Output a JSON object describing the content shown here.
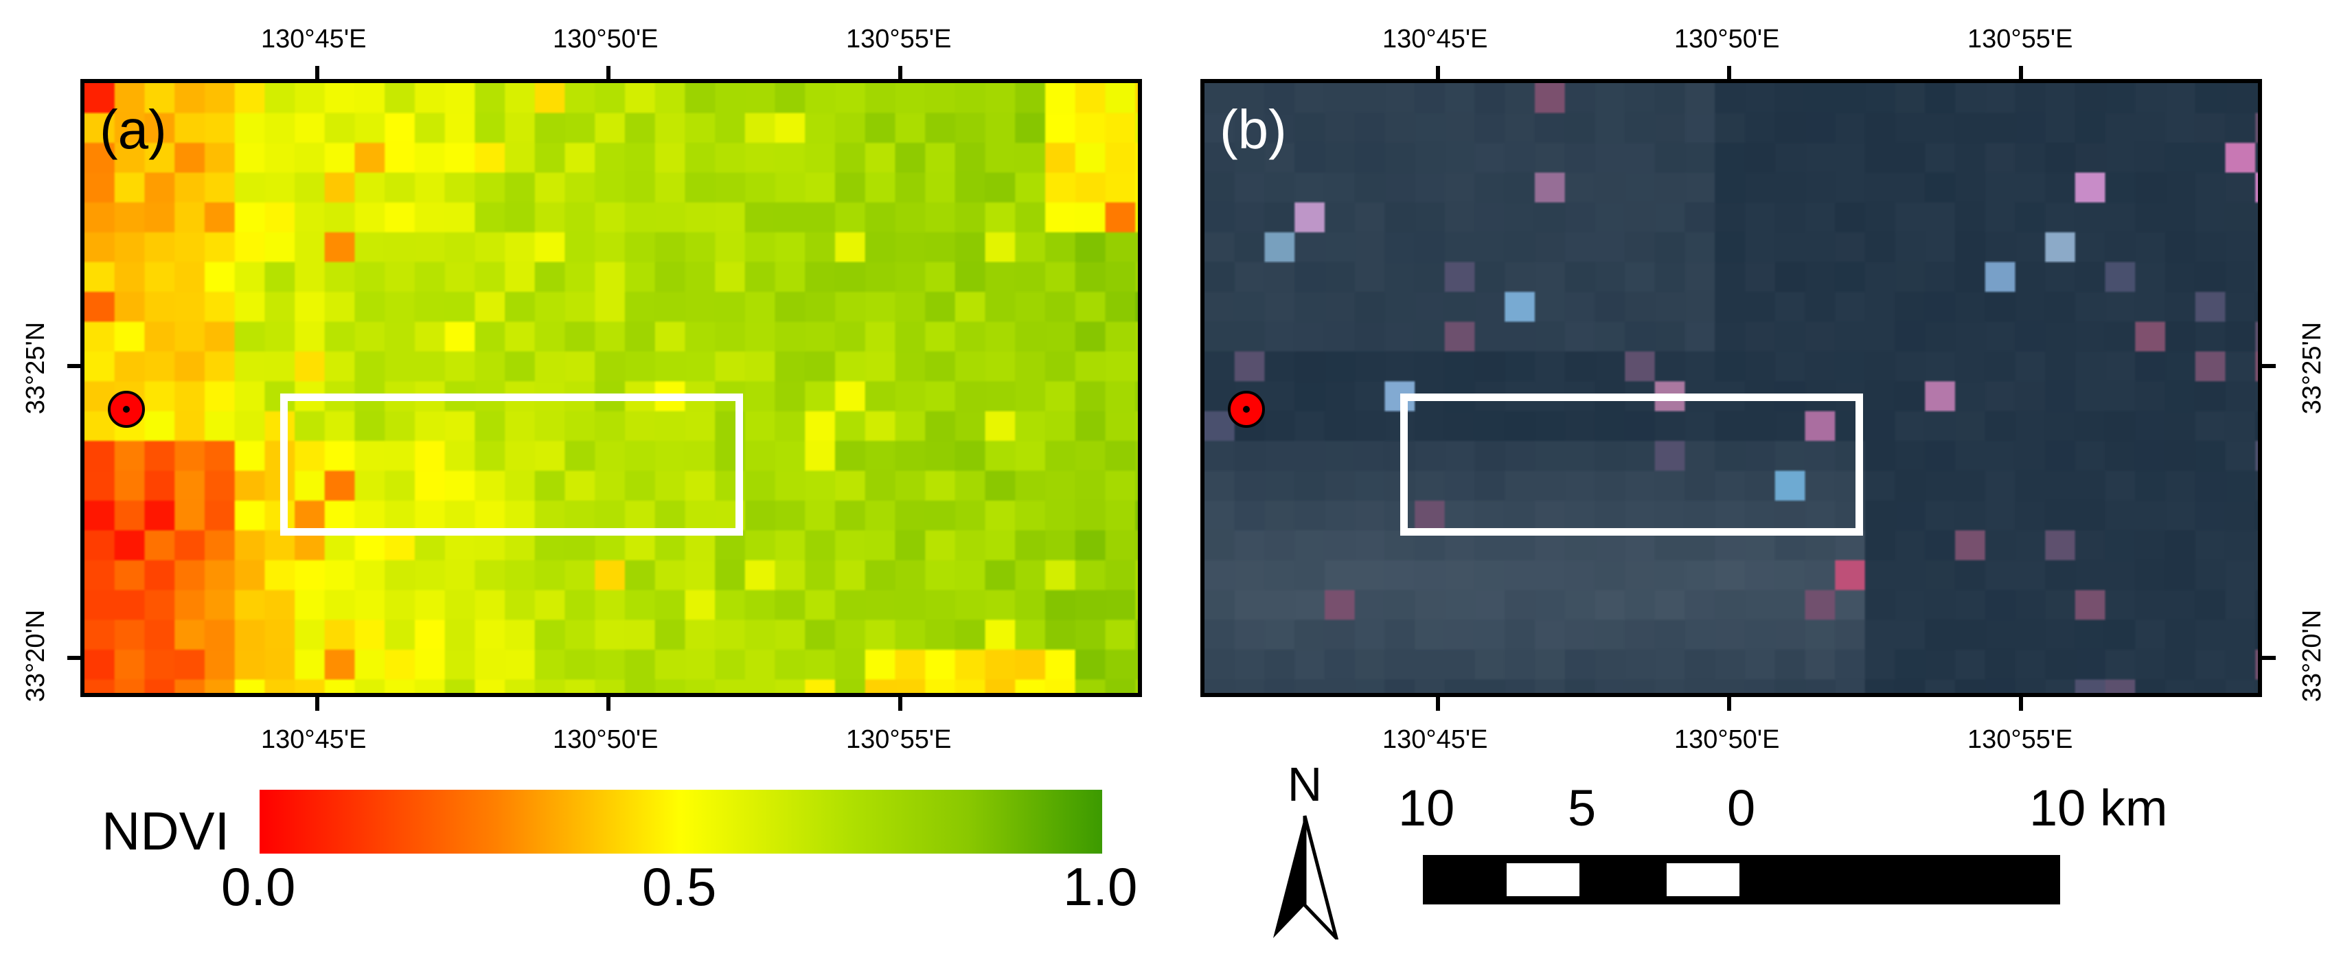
{
  "panels": [
    {
      "id": "a",
      "label": "(a)",
      "description": "NDVI map"
    },
    {
      "id": "b",
      "label": "(b)",
      "description": "true color composite"
    }
  ],
  "axes": {
    "longitude_ticks": [
      "130°45'E",
      "130°50'E",
      "130°55'E"
    ],
    "latitude_ticks": [
      "33°25'N",
      "33°20'N"
    ]
  },
  "legend": {
    "title": "NDVI",
    "min_label": "0.0",
    "mid_label": "0.5",
    "max_label": "1.0",
    "colors": [
      "#ff0000",
      "#ff8000",
      "#ffff00",
      "#b0e000",
      "#3c9a00"
    ]
  },
  "scalebar": {
    "labels": [
      "10",
      "5",
      "0",
      "10 km"
    ]
  },
  "north_arrow": {
    "label": "N"
  },
  "colors": {
    "box": "#ffffff",
    "marker": "#ff0000",
    "rgb_background": "#233648"
  }
}
